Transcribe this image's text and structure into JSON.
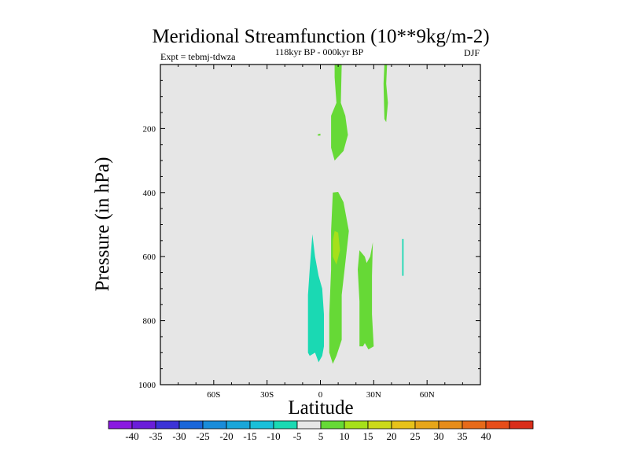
{
  "chart_data": {
    "type": "contour",
    "title": "Meridional Streamfunction (10**9kg/m-2)",
    "subtitle": "118kyr BP - 000kyr BP",
    "left_label": "Expt = tebmj-tdwza",
    "right_label": "DJF",
    "xlabel": "Latitude",
    "ylabel": "Pressure (in hPa)",
    "xlim": [
      -90,
      90
    ],
    "ylim": [
      1000,
      0
    ],
    "x_ticks": [
      {
        "value": -60,
        "label": "60S"
      },
      {
        "value": -30,
        "label": "30S"
      },
      {
        "value": 0,
        "label": "0"
      },
      {
        "value": 30,
        "label": "30N"
      },
      {
        "value": 60,
        "label": "60N"
      }
    ],
    "y_ticks": [
      {
        "value": 200,
        "label": "200"
      },
      {
        "value": 400,
        "label": "400"
      },
      {
        "value": 600,
        "label": "600"
      },
      {
        "value": 800,
        "label": "800"
      },
      {
        "value": 1000,
        "label": "1000"
      }
    ],
    "background_color": "#e6e6e6",
    "regions": [
      {
        "name": "upper-tropical-positive",
        "level": "5 to 10",
        "color": "#66d936",
        "points": [
          [
            8,
            0
          ],
          [
            12,
            0
          ],
          [
            11.5,
            120
          ],
          [
            14,
            160
          ],
          [
            15.5,
            220
          ],
          [
            13,
            270
          ],
          [
            8,
            300
          ],
          [
            6,
            260
          ],
          [
            6,
            160
          ],
          [
            9,
            120
          ],
          [
            8,
            40
          ]
        ]
      },
      {
        "name": "upper-small-positive",
        "level": "5 to 10",
        "color": "#66d936",
        "points": [
          [
            36,
            0
          ],
          [
            37.5,
            0
          ],
          [
            37,
            60
          ],
          [
            38,
            120
          ],
          [
            37,
            180
          ],
          [
            36,
            170
          ],
          [
            35.5,
            60
          ]
        ]
      },
      {
        "name": "speck-positive",
        "level": "5 to 10",
        "color": "#66d936",
        "points": [
          [
            -1.5,
            218
          ],
          [
            0,
            216
          ],
          [
            0,
            222
          ],
          [
            -1.5,
            222
          ]
        ]
      },
      {
        "name": "mid-tropical-positive",
        "level": "5 to 10",
        "color": "#66d936",
        "points": [
          [
            7,
            400
          ],
          [
            10,
            398
          ],
          [
            13,
            430
          ],
          [
            16,
            520
          ],
          [
            14,
            620
          ],
          [
            12,
            720
          ],
          [
            12,
            860
          ],
          [
            9,
            910
          ],
          [
            7,
            935
          ],
          [
            5,
            900
          ],
          [
            5,
            780
          ],
          [
            6,
            640
          ],
          [
            6,
            520
          ]
        ]
      },
      {
        "name": "mid-tropical-core",
        "level": "10 to 15",
        "color": "#a6e01a",
        "points": [
          [
            8,
            520
          ],
          [
            10,
            525
          ],
          [
            11,
            580
          ],
          [
            9,
            625
          ],
          [
            7,
            600
          ],
          [
            7,
            550
          ]
        ]
      },
      {
        "name": "nh-lower-positive",
        "level": "5 to 10",
        "color": "#66d936",
        "points": [
          [
            22,
            580
          ],
          [
            25,
            600
          ],
          [
            26,
            620
          ],
          [
            28,
            600
          ],
          [
            29.5,
            555
          ],
          [
            29,
            660
          ],
          [
            29,
            780
          ],
          [
            30,
            880
          ],
          [
            27,
            890
          ],
          [
            25,
            870
          ],
          [
            24,
            880
          ],
          [
            22,
            880
          ],
          [
            22,
            740
          ],
          [
            21,
            640
          ]
        ]
      },
      {
        "name": "sh-lower-negative",
        "level": "-10 to -5",
        "color": "#1ad9b3",
        "points": [
          [
            -4.5,
            530
          ],
          [
            -3,
            600
          ],
          [
            -1,
            660
          ],
          [
            1,
            700
          ],
          [
            2,
            780
          ],
          [
            2,
            880
          ],
          [
            1,
            910
          ],
          [
            -1,
            930
          ],
          [
            -3,
            900
          ],
          [
            -6,
            910
          ],
          [
            -7,
            900
          ],
          [
            -7,
            720
          ],
          [
            -6,
            640
          ]
        ]
      },
      {
        "name": "nh-thin-negative",
        "level": "-10 to -5",
        "color": "#1ad9b3",
        "points": [
          [
            46,
            545
          ],
          [
            46.8,
            545
          ],
          [
            46.8,
            660
          ],
          [
            46,
            660
          ]
        ]
      }
    ],
    "colorbar": {
      "colors": [
        "#8a1ae0",
        "#6a1ed9",
        "#3b33d6",
        "#1a66d9",
        "#1a8cd9",
        "#1aa6d9",
        "#1ac0d9",
        "#1ad9b3",
        "#e6e6e6",
        "#66d936",
        "#a6e01a",
        "#ccd91a",
        "#e6c21a",
        "#e6a61a",
        "#e68c1a",
        "#e66a1a",
        "#e64d1a",
        "#d92e1a"
      ],
      "labels": [
        "-40",
        "-35",
        "-30",
        "-25",
        "-20",
        "-15",
        "-10",
        "-5",
        "5",
        "10",
        "15",
        "20",
        "25",
        "30",
        "35",
        "40"
      ]
    }
  }
}
